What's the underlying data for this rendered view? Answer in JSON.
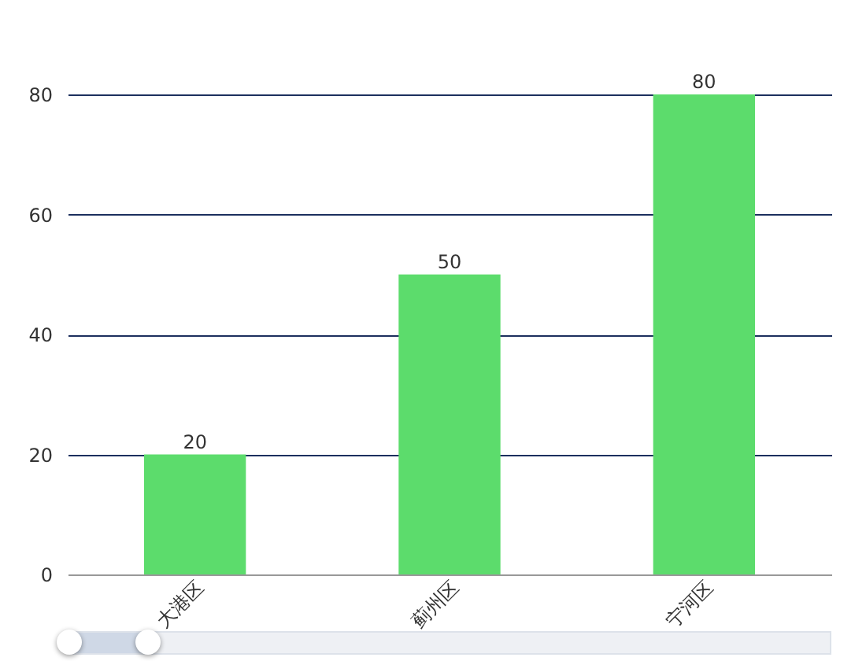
{
  "chart_data": {
    "type": "bar",
    "categories": [
      "大港区",
      "蓟州区",
      "宁河区"
    ],
    "values": [
      20,
      50,
      80
    ],
    "color": "#5cdc6c",
    "ylim": [
      0,
      80
    ],
    "yticks": [
      0,
      20,
      40,
      60,
      80
    ],
    "grid": "y",
    "data_labels": true
  }
}
